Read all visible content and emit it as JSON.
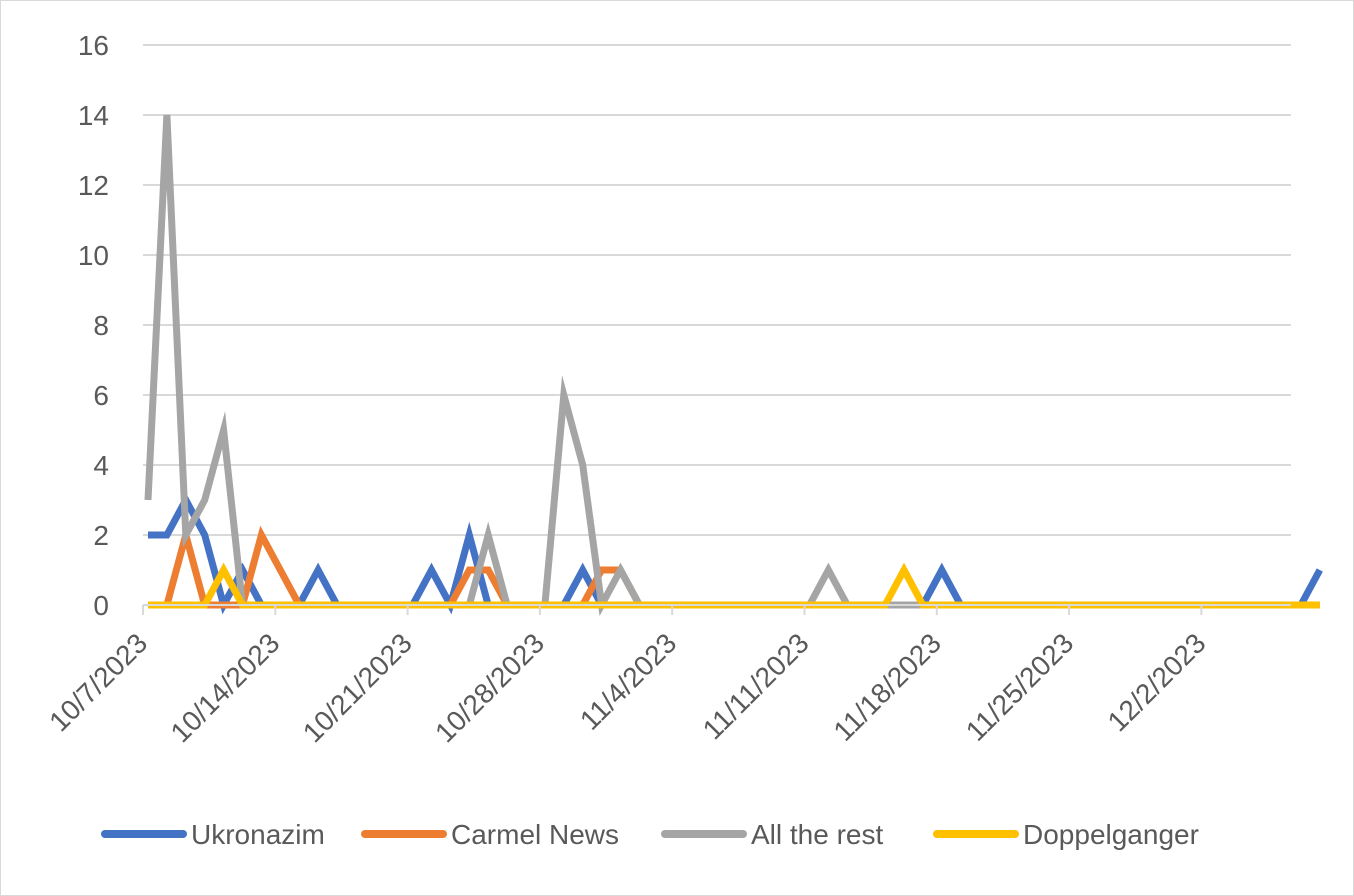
{
  "chart_data": {
    "type": "line",
    "title": "",
    "xlabel": "",
    "ylabel": "",
    "ylim": [
      0,
      16
    ],
    "yticks": [
      0,
      2,
      4,
      6,
      8,
      10,
      12,
      14,
      16
    ],
    "grid": true,
    "legend_position": "bottom",
    "x_tick_labels": [
      "10/7/2023",
      "10/14/2023",
      "10/21/2023",
      "10/28/2023",
      "11/4/2023",
      "11/11/2023",
      "11/18/2023",
      "11/25/2023",
      "12/2/2023"
    ],
    "x_start": "10/7/2023",
    "x_end": "12/8/2023",
    "series": [
      {
        "name": "Ukronazim",
        "color": "#4472C4",
        "points": [
          [
            "10/7/2023",
            2
          ],
          [
            "10/8/2023",
            2
          ],
          [
            "10/9/2023",
            3
          ],
          [
            "10/10/2023",
            2
          ],
          [
            "10/11/2023",
            0
          ],
          [
            "10/12/2023",
            1
          ],
          [
            "10/13/2023",
            0
          ],
          [
            "10/14/2023",
            0
          ],
          [
            "10/15/2023",
            0
          ],
          [
            "10/16/2023",
            1
          ],
          [
            "10/17/2023",
            0
          ],
          [
            "10/21/2023",
            0
          ],
          [
            "10/22/2023",
            1
          ],
          [
            "10/23/2023",
            0
          ],
          [
            "10/24/2023",
            2
          ],
          [
            "10/25/2023",
            0
          ],
          [
            "10/28/2023",
            0
          ],
          [
            "10/29/2023",
            0
          ],
          [
            "10/30/2023",
            1
          ],
          [
            "10/31/2023",
            0
          ],
          [
            "11/17/2023",
            0
          ],
          [
            "11/18/2023",
            1
          ],
          [
            "11/19/2023",
            0
          ],
          [
            "12/7/2023",
            0
          ],
          [
            "12/8/2023",
            1
          ]
        ]
      },
      {
        "name": "Carmel News",
        "color": "#ED7D31",
        "points": [
          [
            "10/7/2023",
            0
          ],
          [
            "10/8/2023",
            0
          ],
          [
            "10/9/2023",
            2
          ],
          [
            "10/10/2023",
            0
          ],
          [
            "10/11/2023",
            0
          ],
          [
            "10/12/2023",
            0
          ],
          [
            "10/13/2023",
            2
          ],
          [
            "10/14/2023",
            1
          ],
          [
            "10/15/2023",
            0
          ],
          [
            "10/22/2023",
            0
          ],
          [
            "10/23/2023",
            0
          ],
          [
            "10/24/2023",
            1
          ],
          [
            "10/25/2023",
            1
          ],
          [
            "10/26/2023",
            0
          ],
          [
            "10/30/2023",
            0
          ],
          [
            "10/31/2023",
            1
          ],
          [
            "11/1/2023",
            1
          ],
          [
            "11/2/2023",
            0
          ],
          [
            "12/8/2023",
            0
          ]
        ]
      },
      {
        "name": "All the rest",
        "color": "#A5A5A5",
        "points": [
          [
            "10/7/2023",
            3
          ],
          [
            "10/8/2023",
            14
          ],
          [
            "10/9/2023",
            2
          ],
          [
            "10/10/2023",
            3
          ],
          [
            "10/11/2023",
            5
          ],
          [
            "10/12/2023",
            0
          ],
          [
            "10/17/2023",
            0
          ],
          [
            "10/24/2023",
            0
          ],
          [
            "10/25/2023",
            2
          ],
          [
            "10/26/2023",
            0
          ],
          [
            "10/28/2023",
            0
          ],
          [
            "10/29/2023",
            6
          ],
          [
            "10/30/2023",
            4
          ],
          [
            "10/31/2023",
            0
          ],
          [
            "11/1/2023",
            1
          ],
          [
            "11/2/2023",
            0
          ],
          [
            "11/11/2023",
            0
          ],
          [
            "11/12/2023",
            1
          ],
          [
            "11/13/2023",
            0
          ],
          [
            "12/8/2023",
            0
          ]
        ]
      },
      {
        "name": "Doppelganger",
        "color": "#FFC000",
        "points": [
          [
            "10/7/2023",
            0
          ],
          [
            "10/10/2023",
            0
          ],
          [
            "10/11/2023",
            1
          ],
          [
            "10/12/2023",
            0
          ],
          [
            "11/15/2023",
            0
          ],
          [
            "11/16/2023",
            1
          ],
          [
            "11/17/2023",
            0
          ],
          [
            "12/8/2023",
            0
          ]
        ]
      }
    ]
  }
}
